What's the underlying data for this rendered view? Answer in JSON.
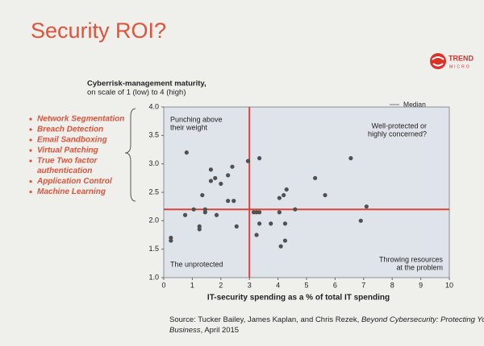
{
  "slide": {
    "title": "Security ROI?",
    "logo": [
      "TREND",
      "MICRO"
    ],
    "bullets": [
      [
        "Network Segmentation"
      ],
      [
        "Breach Detection"
      ],
      [
        "Email Sandboxing"
      ],
      [
        "Virtual Patching"
      ],
      [
        "True Two factor",
        "authentication"
      ],
      [
        "Application Control"
      ],
      [
        "Machine Learning"
      ]
    ],
    "source": {
      "prefix": "Source: Tucker Bailey, James Kaplan, and Chris Rezek, ",
      "book": [
        "Beyond Cybersecurity: Protecting Your Digital",
        "Business"
      ],
      "suffix": ", April 2015"
    }
  },
  "chart_data": {
    "type": "scatter",
    "y_label": [
      "Cyberrisk-management maturity,",
      "on scale of 1 (low) to 4 (high)"
    ],
    "x_label": "IT-security spending as a % of total IT spending",
    "legend": "Median",
    "median_x": 3,
    "median_y": 2.2,
    "median_color": "#d9453a",
    "color": "#505050",
    "quadrant_labels": [
      [
        "Punching above",
        "their weight"
      ],
      [
        "Well-protected or",
        "highly concerned?"
      ],
      [
        "The unprotected"
      ],
      [
        "Throwing resources",
        "at the problem"
      ]
    ],
    "x": [
      0.8,
      1.65,
      1.8,
      1.65,
      2.0,
      2.25,
      2.4,
      1.35,
      2.25,
      2.45,
      2.95,
      3.35,
      5.3,
      6.55,
      4.3,
      4.2,
      4.05,
      5.65,
      7.1,
      6.9,
      4.6,
      4.05,
      3.25,
      3.35,
      3.75,
      3.35,
      3.15,
      4.25,
      4.25,
      4.1,
      3.25,
      0.75,
      1.05,
      1.45,
      1.45,
      1.85,
      1.25,
      1.25,
      0.25,
      0.25,
      2.55
    ],
    "values": [
      3.2,
      2.9,
      2.75,
      2.7,
      2.65,
      2.8,
      2.95,
      2.45,
      2.35,
      2.35,
      3.05,
      3.1,
      2.75,
      3.1,
      2.55,
      2.45,
      2.4,
      2.45,
      2.25,
      2.0,
      2.2,
      2.15,
      2.15,
      1.95,
      1.95,
      2.15,
      2.15,
      1.95,
      1.65,
      1.55,
      1.75,
      2.1,
      2.2,
      2.2,
      2.15,
      2.1,
      1.9,
      1.85,
      1.7,
      1.65,
      1.9
    ],
    "xlim": [
      0,
      10
    ],
    "ylim": [
      1,
      4
    ],
    "xticks": [
      0,
      1,
      2,
      3,
      4,
      5,
      6,
      7,
      8,
      9,
      10
    ],
    "yticks": [
      {
        "value": 1,
        "label": "1.0"
      },
      1.5,
      {
        "value": 2,
        "label": "2.0"
      },
      2.5,
      {
        "value": 3,
        "label": "3.0"
      },
      3.5,
      {
        "value": 4,
        "label": "4.0"
      }
    ]
  }
}
